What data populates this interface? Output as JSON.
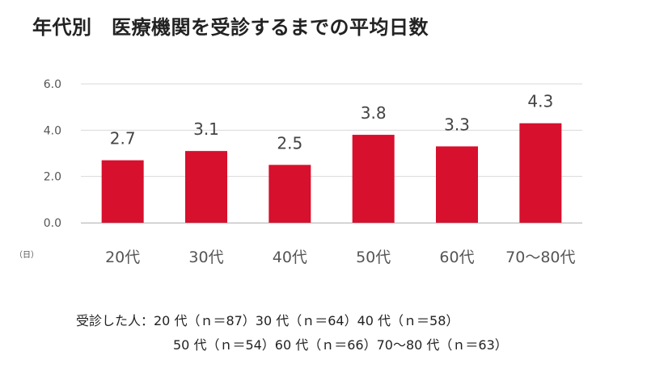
{
  "title": "年代別　医療機関を受診するまでの平均日数",
  "unit_label": "（日）",
  "note": {
    "line1": "受診した人：20 代（ｎ＝87）30 代（ｎ＝64）40 代（ｎ＝58）",
    "line2": "50 代（ｎ＝54）60 代（ｎ＝66）70〜80 代（ｎ＝63）"
  },
  "chart_data": {
    "type": "bar",
    "title": "年代別　医療機関を受診するまでの平均日数",
    "categories": [
      "20代",
      "30代",
      "40代",
      "50代",
      "60代",
      "70〜80代"
    ],
    "values": [
      2.7,
      3.1,
      2.5,
      3.8,
      3.3,
      4.3
    ],
    "value_labels": [
      "2.7",
      "3.1",
      "2.5",
      "3.8",
      "3.3",
      "4.3"
    ],
    "yticks": [
      "0.0",
      "2.0",
      "4.0",
      "6.0"
    ],
    "ytick_values": [
      0,
      2,
      4,
      6
    ],
    "ylim": [
      0,
      6
    ],
    "ylabel": "（日）",
    "xlabel": "",
    "grid": true,
    "bar_color": "#d7102d",
    "grid_color": "#d9d9d9"
  }
}
